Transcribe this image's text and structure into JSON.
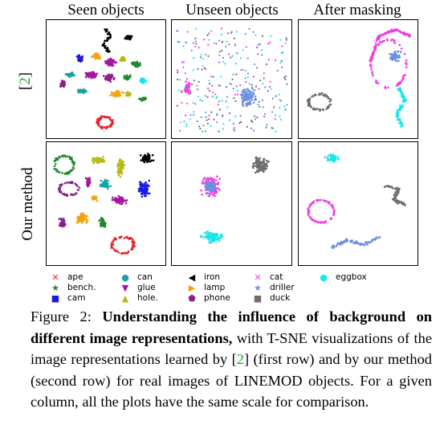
{
  "columns": [
    "Seen objects",
    "Unseen objects",
    "After masking"
  ],
  "rows": [
    {
      "prefix": "",
      "ref": "2",
      "suffix": ""
    },
    {
      "prefix": "Our method",
      "ref": "",
      "suffix": ""
    }
  ],
  "row_ref_open": "[",
  "row_ref_close": "]",
  "legend": [
    {
      "label": "ape",
      "color": "#e8252c",
      "icon": "x-marker"
    },
    {
      "label": "bench.",
      "color": "#1f8a2b",
      "icon": "star-marker"
    },
    {
      "label": "cam",
      "color": "#1a1ae6",
      "icon": "square-marker"
    },
    {
      "label": "can",
      "color": "#17a3a3",
      "icon": "circle-marker"
    },
    {
      "label": "glue",
      "color": "#a3179e",
      "icon": "triangle-down-marker"
    },
    {
      "label": "hole.",
      "color": "#b8b81a",
      "icon": "triangle-up-marker"
    },
    {
      "label": "iron",
      "color": "#000000",
      "icon": "triangle-left-marker"
    },
    {
      "label": "lamp",
      "color": "#f5a30a",
      "icon": "triangle-right-marker"
    },
    {
      "label": "phone",
      "color": "#8a1f8a",
      "icon": "pentagon-marker"
    },
    {
      "label": "cat",
      "color": "#f03ce6",
      "icon": "x-marker"
    },
    {
      "label": "driller",
      "color": "#6f8fe0",
      "icon": "star-marker"
    },
    {
      "label": "duck",
      "color": "#6e6e6e",
      "icon": "square-marker"
    },
    {
      "label": "eggbox",
      "color": "#19e6e6",
      "icon": "circle-marker"
    }
  ],
  "caption": {
    "label": "Figure 2: ",
    "bold": "Understanding the influence of background on different image representations,",
    "part1": " with T-SNE visualizations of the image representations learned by [",
    "ref": "2",
    "part2": "] (first row) and by our method (second row) for real images of LINEMOD objects. For a given column, all the plots have the same scale for comparison."
  }
}
